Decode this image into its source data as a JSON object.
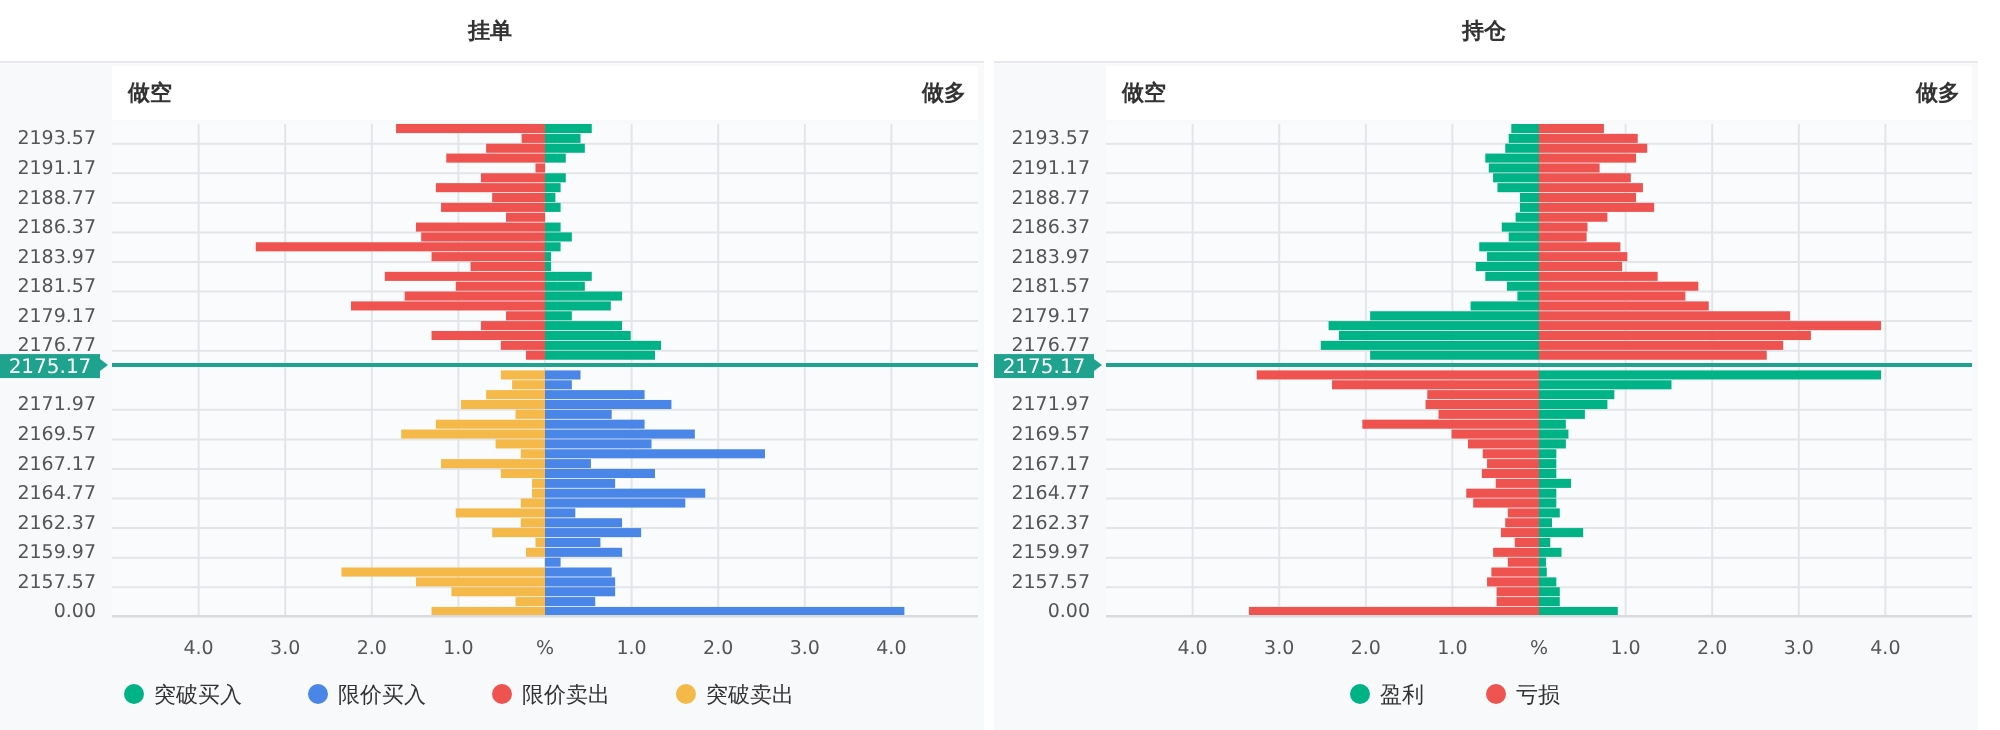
{
  "chart_data": [
    {
      "type": "bar",
      "orientation": "horizontal",
      "title": "挂单",
      "annotations": [
        "做空",
        "做多"
      ],
      "categories": [
        null,
        "2193.57",
        null,
        null,
        "2191.17",
        null,
        null,
        "2188.77",
        null,
        null,
        "2186.37",
        null,
        null,
        "2183.97",
        null,
        null,
        "2181.57",
        null,
        null,
        "2179.17",
        null,
        null,
        "2176.77",
        null,
        "2175.17",
        null,
        null,
        null,
        "2171.97",
        null,
        null,
        "2169.57",
        null,
        null,
        "2167.17",
        null,
        null,
        "2164.77",
        null,
        null,
        "2162.37",
        null,
        null,
        "2159.97",
        null,
        null,
        "2157.57",
        null,
        null,
        "0.00"
      ],
      "series": [
        {
          "name": "突破买入",
          "color": "#00b386",
          "values": [
            0.54,
            0.41,
            0.46,
            0.24,
            0,
            0.24,
            0.18,
            0.12,
            0.18,
            0,
            0.18,
            0.31,
            0.18,
            0.07,
            0.07,
            0.54,
            0.46,
            0.89,
            0.76,
            0.31,
            0.89,
            0.99,
            1.34,
            1.27,
            null,
            null,
            null,
            null,
            null,
            null,
            null,
            null,
            null,
            null,
            null,
            null,
            null,
            null,
            null,
            null,
            null,
            null,
            null,
            null,
            null,
            null,
            null,
            null,
            null,
            null
          ]
        },
        {
          "name": "限价买入",
          "color": "#4a86e8",
          "values": [
            null,
            null,
            null,
            null,
            null,
            null,
            null,
            null,
            null,
            null,
            null,
            null,
            null,
            null,
            null,
            null,
            null,
            null,
            null,
            null,
            null,
            null,
            null,
            null,
            null,
            0.41,
            0.31,
            1.15,
            1.46,
            0.77,
            1.15,
            1.73,
            1.23,
            2.54,
            0.53,
            1.27,
            0.81,
            1.85,
            1.62,
            0.35,
            0.89,
            1.11,
            0.64,
            0.89,
            0.18,
            0.77,
            0.81,
            0.81,
            0.58,
            4.15
          ]
        },
        {
          "name": "限价卖出",
          "color": "#ef5350",
          "values": [
            -1.72,
            -0.27,
            -0.68,
            -1.14,
            -0.11,
            -0.74,
            -1.26,
            -0.61,
            -1.2,
            -0.45,
            -1.49,
            -1.43,
            -3.34,
            -1.31,
            -0.86,
            -1.85,
            -1.03,
            -1.62,
            -2.24,
            -0.45,
            -0.74,
            -1.31,
            -0.51,
            -0.22,
            null,
            null,
            null,
            null,
            null,
            null,
            null,
            null,
            null,
            null,
            null,
            null,
            null,
            null,
            null,
            null,
            null,
            null,
            null,
            null,
            null,
            null,
            null,
            null,
            null,
            null
          ]
        },
        {
          "name": "突破卖出",
          "color": "#f5b94a",
          "values": [
            null,
            null,
            null,
            null,
            null,
            null,
            null,
            null,
            null,
            null,
            null,
            null,
            null,
            null,
            null,
            null,
            null,
            null,
            null,
            null,
            null,
            null,
            null,
            null,
            null,
            -0.51,
            -0.38,
            -0.68,
            -0.97,
            -0.34,
            -1.26,
            -1.66,
            -0.57,
            -0.28,
            -1.2,
            -0.51,
            -0.15,
            -0.15,
            -0.28,
            -1.03,
            -0.28,
            -0.61,
            -0.11,
            -0.22,
            0,
            -2.35,
            -1.49,
            -1.08,
            -0.34,
            -1.31
          ]
        }
      ],
      "xlim": [
        -5,
        5
      ],
      "xticks": [
        {
          "value": -4,
          "label": "4.0"
        },
        {
          "value": -3,
          "label": "3.0"
        },
        {
          "value": -2,
          "label": "2.0"
        },
        {
          "value": -1,
          "label": "1.0"
        },
        {
          "value": 0,
          "label": "%"
        },
        {
          "value": 1,
          "label": "1.0"
        },
        {
          "value": 2,
          "label": "2.0"
        },
        {
          "value": 3,
          "label": "3.0"
        },
        {
          "value": 4,
          "label": "4.0"
        }
      ],
      "ref_lines": [
        {
          "axis": "y",
          "value": "2175.17",
          "color": "#1fa38e"
        }
      ],
      "grid": true,
      "legend": "bottom",
      "stacked": true
    },
    {
      "type": "bar",
      "orientation": "horizontal",
      "title": "持仓",
      "annotations": [
        "做空",
        "做多"
      ],
      "categories": [
        null,
        "2193.57",
        null,
        null,
        "2191.17",
        null,
        null,
        "2188.77",
        null,
        null,
        "2186.37",
        null,
        null,
        "2183.97",
        null,
        null,
        "2181.57",
        null,
        null,
        "2179.17",
        null,
        null,
        "2176.77",
        null,
        "2175.17",
        null,
        null,
        null,
        "2171.97",
        null,
        null,
        "2169.57",
        null,
        null,
        "2167.17",
        null,
        null,
        "2164.77",
        null,
        null,
        "2162.37",
        null,
        null,
        "2159.97",
        null,
        null,
        "2157.57",
        null,
        null,
        "0.00"
      ],
      "series": [
        {
          "name": "盈利",
          "color": "#00b386",
          "values": [
            -0.32,
            -0.35,
            -0.39,
            -0.62,
            -0.58,
            -0.53,
            -0.48,
            -0.22,
            -0.22,
            -0.27,
            -0.43,
            -0.35,
            -0.69,
            -0.6,
            -0.73,
            -0.62,
            -0.37,
            -0.25,
            -0.79,
            -1.95,
            -2.43,
            -2.31,
            -2.52,
            -1.95,
            null,
            3.95,
            1.53,
            0.87,
            0.79,
            0.53,
            0.31,
            0.34,
            0.31,
            0.2,
            0.2,
            0.2,
            0.37,
            0.2,
            0.2,
            0.24,
            0.15,
            0.51,
            0.13,
            0.26,
            0.08,
            0.09,
            0.2,
            0.24,
            0.24,
            0.91
          ]
        },
        {
          "name": "亏损",
          "color": "#ef5350",
          "values": [
            0.75,
            1.14,
            1.25,
            1.12,
            0.7,
            1.06,
            1.2,
            1.12,
            1.33,
            0.79,
            0.56,
            0.55,
            0.94,
            1.02,
            0.96,
            1.37,
            1.84,
            1.69,
            1.96,
            2.9,
            3.95,
            3.14,
            2.82,
            2.63,
            null,
            -3.26,
            -2.39,
            -1.29,
            -1.31,
            -1.16,
            -2.04,
            -1.01,
            -0.82,
            -0.65,
            -0.6,
            -0.66,
            -0.5,
            -0.84,
            -0.76,
            -0.36,
            -0.39,
            -0.44,
            -0.28,
            -0.53,
            -0.36,
            -0.55,
            -0.6,
            -0.49,
            -0.49,
            -3.35
          ]
        }
      ],
      "xlim": [
        -5,
        5
      ],
      "xticks": [
        {
          "value": -4,
          "label": "4.0"
        },
        {
          "value": -3,
          "label": "3.0"
        },
        {
          "value": -2,
          "label": "2.0"
        },
        {
          "value": -1,
          "label": "1.0"
        },
        {
          "value": 0,
          "label": "%"
        },
        {
          "value": 1,
          "label": "1.0"
        },
        {
          "value": 2,
          "label": "2.0"
        },
        {
          "value": 3,
          "label": "3.0"
        },
        {
          "value": 4,
          "label": "4.0"
        }
      ],
      "ref_lines": [
        {
          "axis": "y",
          "value": "2175.17",
          "color": "#1fa38e"
        }
      ],
      "grid": true,
      "legend": "bottom",
      "stacked": true
    }
  ]
}
